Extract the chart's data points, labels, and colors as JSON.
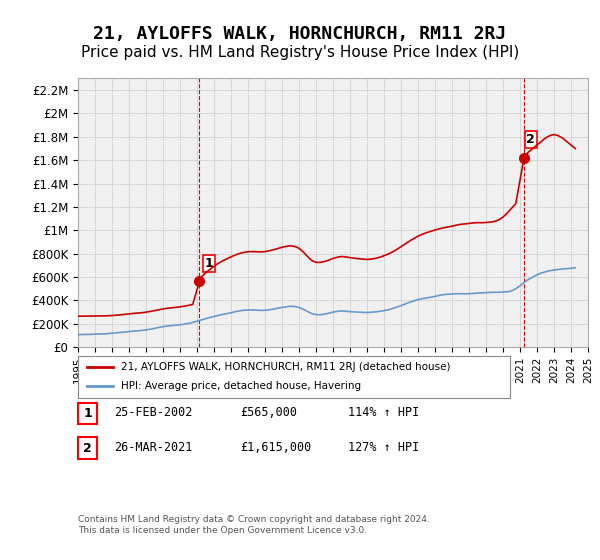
{
  "title": "21, AYLOFFS WALK, HORNCHURCH, RM11 2RJ",
  "subtitle": "Price paid vs. HM Land Registry's House Price Index (HPI)",
  "title_fontsize": 13,
  "subtitle_fontsize": 11,
  "background_color": "#ffffff",
  "grid_color": "#cccccc",
  "plot_bg": "#f0f0f0",
  "red_color": "#cc0000",
  "blue_color": "#6699cc",
  "dashed_color": "#cc0000",
  "marker1_color": "#cc0000",
  "marker2_color": "#cc0000",
  "ylim": [
    0,
    2300000
  ],
  "yticks": [
    0,
    200000,
    400000,
    600000,
    800000,
    1000000,
    1200000,
    1400000,
    1600000,
    1800000,
    2000000,
    2200000
  ],
  "ytick_labels": [
    "£0",
    "£200K",
    "£400K",
    "£600K",
    "£800K",
    "£1M",
    "£1.2M",
    "£1.4M",
    "£1.6M",
    "£1.8M",
    "£2M",
    "£2.2M"
  ],
  "sale1_date": "25-FEB-2002",
  "sale1_price": 565000,
  "sale1_label": "114% ↑ HPI",
  "sale2_date": "26-MAR-2021",
  "sale2_price": 1615000,
  "sale2_label": "127% ↑ HPI",
  "legend_line1": "21, AYLOFFS WALK, HORNCHURCH, RM11 2RJ (detached house)",
  "legend_line2": "HPI: Average price, detached house, Havering",
  "footnote": "Contains HM Land Registry data © Crown copyright and database right 2024.\nThis data is licensed under the Open Government Licence v3.0.",
  "hpi_years": [
    1995.0,
    1995.25,
    1995.5,
    1995.75,
    1996.0,
    1996.25,
    1996.5,
    1996.75,
    1997.0,
    1997.25,
    1997.5,
    1997.75,
    1998.0,
    1998.25,
    1998.5,
    1998.75,
    1999.0,
    1999.25,
    1999.5,
    1999.75,
    2000.0,
    2000.25,
    2000.5,
    2000.75,
    2001.0,
    2001.25,
    2001.5,
    2001.75,
    2002.0,
    2002.25,
    2002.5,
    2002.75,
    2003.0,
    2003.25,
    2003.5,
    2003.75,
    2004.0,
    2004.25,
    2004.5,
    2004.75,
    2005.0,
    2005.25,
    2005.5,
    2005.75,
    2006.0,
    2006.25,
    2006.5,
    2006.75,
    2007.0,
    2007.25,
    2007.5,
    2007.75,
    2008.0,
    2008.25,
    2008.5,
    2008.75,
    2009.0,
    2009.25,
    2009.5,
    2009.75,
    2010.0,
    2010.25,
    2010.5,
    2010.75,
    2011.0,
    2011.25,
    2011.5,
    2011.75,
    2012.0,
    2012.25,
    2012.5,
    2012.75,
    2013.0,
    2013.25,
    2013.5,
    2013.75,
    2014.0,
    2014.25,
    2014.5,
    2014.75,
    2015.0,
    2015.25,
    2015.5,
    2015.75,
    2016.0,
    2016.25,
    2016.5,
    2016.75,
    2017.0,
    2017.25,
    2017.5,
    2017.75,
    2018.0,
    2018.25,
    2018.5,
    2018.75,
    2019.0,
    2019.25,
    2019.5,
    2019.75,
    2020.0,
    2020.25,
    2020.5,
    2020.75,
    2021.0,
    2021.25,
    2021.5,
    2021.75,
    2022.0,
    2022.25,
    2022.5,
    2022.75,
    2023.0,
    2023.25,
    2023.5,
    2023.75,
    2024.0,
    2024.25
  ],
  "hpi_values": [
    108000,
    108500,
    109000,
    110000,
    112000,
    113000,
    114000,
    116000,
    120000,
    123000,
    126000,
    130000,
    134000,
    137000,
    140000,
    143000,
    148000,
    154000,
    161000,
    169000,
    176000,
    181000,
    185000,
    188000,
    192000,
    197000,
    204000,
    212000,
    222000,
    233000,
    244000,
    254000,
    263000,
    272000,
    280000,
    287000,
    295000,
    304000,
    311000,
    316000,
    318000,
    318000,
    317000,
    315000,
    316000,
    320000,
    326000,
    333000,
    340000,
    346000,
    350000,
    348000,
    340000,
    325000,
    306000,
    288000,
    278000,
    278000,
    283000,
    291000,
    300000,
    307000,
    310000,
    308000,
    304000,
    302000,
    300000,
    298000,
    297000,
    299000,
    302000,
    307000,
    313000,
    320000,
    331000,
    342000,
    356000,
    370000,
    384000,
    396000,
    407000,
    415000,
    422000,
    427000,
    435000,
    443000,
    450000,
    453000,
    455000,
    457000,
    458000,
    457000,
    458000,
    460000,
    463000,
    465000,
    467000,
    469000,
    470000,
    470000,
    472000,
    474000,
    482000,
    500000,
    525000,
    555000,
    580000,
    600000,
    620000,
    635000,
    645000,
    655000,
    660000,
    665000,
    670000,
    672000,
    675000,
    680000
  ],
  "red_years": [
    1995.0,
    1995.25,
    1995.5,
    1995.75,
    1996.0,
    1996.25,
    1996.5,
    1996.75,
    1997.0,
    1997.25,
    1997.5,
    1997.75,
    1998.0,
    1998.25,
    1998.5,
    1998.75,
    1999.0,
    1999.25,
    1999.5,
    1999.75,
    2000.0,
    2000.25,
    2000.5,
    2000.75,
    2001.0,
    2001.25,
    2001.5,
    2001.75,
    2002.145,
    2002.2,
    2002.25,
    2002.5,
    2002.75,
    2003.0,
    2003.25,
    2003.5,
    2003.75,
    2004.0,
    2004.25,
    2004.5,
    2004.75,
    2005.0,
    2005.25,
    2005.5,
    2005.75,
    2006.0,
    2006.25,
    2006.5,
    2006.75,
    2007.0,
    2007.25,
    2007.5,
    2007.75,
    2008.0,
    2008.25,
    2008.5,
    2008.75,
    2009.0,
    2009.25,
    2009.5,
    2009.75,
    2010.0,
    2010.25,
    2010.5,
    2010.75,
    2011.0,
    2011.25,
    2011.5,
    2011.75,
    2012.0,
    2012.25,
    2012.5,
    2012.75,
    2013.0,
    2013.25,
    2013.5,
    2013.75,
    2014.0,
    2014.25,
    2014.5,
    2014.75,
    2015.0,
    2015.25,
    2015.5,
    2015.75,
    2016.0,
    2016.25,
    2016.5,
    2016.75,
    2017.0,
    2017.25,
    2017.5,
    2017.75,
    2018.0,
    2018.25,
    2018.5,
    2018.75,
    2019.0,
    2019.25,
    2019.5,
    2019.75,
    2020.0,
    2020.25,
    2020.5,
    2020.75,
    2021.23,
    2021.3,
    2021.5,
    2021.75,
    2022.0,
    2022.25,
    2022.5,
    2022.75,
    2023.0,
    2023.25,
    2023.5,
    2023.75,
    2024.0,
    2024.25
  ],
  "red_values": [
    265000,
    265500,
    266000,
    266500,
    267000,
    267500,
    268000,
    269000,
    271000,
    274000,
    277000,
    281000,
    285000,
    289000,
    292000,
    295000,
    300000,
    306000,
    313000,
    320000,
    327000,
    333000,
    337000,
    341000,
    345000,
    351000,
    358000,
    366000,
    565000,
    580000,
    600000,
    635000,
    665000,
    692000,
    717000,
    738000,
    756000,
    773000,
    789000,
    802000,
    811000,
    817000,
    818000,
    817000,
    815000,
    818000,
    825000,
    834000,
    844000,
    855000,
    863000,
    868000,
    862000,
    847000,
    815000,
    777000,
    742000,
    726000,
    726000,
    733000,
    745000,
    759000,
    770000,
    776000,
    773000,
    766000,
    762000,
    757000,
    754000,
    751000,
    754000,
    760000,
    770000,
    783000,
    797000,
    815000,
    836000,
    860000,
    884000,
    908000,
    929000,
    950000,
    966000,
    980000,
    991000,
    1003000,
    1013000,
    1022000,
    1028000,
    1036000,
    1044000,
    1051000,
    1055000,
    1059000,
    1063000,
    1066000,
    1065000,
    1067000,
    1070000,
    1076000,
    1090000,
    1113000,
    1148000,
    1188000,
    1228000,
    1615000,
    1640000,
    1670000,
    1700000,
    1730000,
    1760000,
    1790000,
    1810000,
    1820000,
    1810000,
    1790000,
    1760000,
    1730000,
    1700000
  ]
}
